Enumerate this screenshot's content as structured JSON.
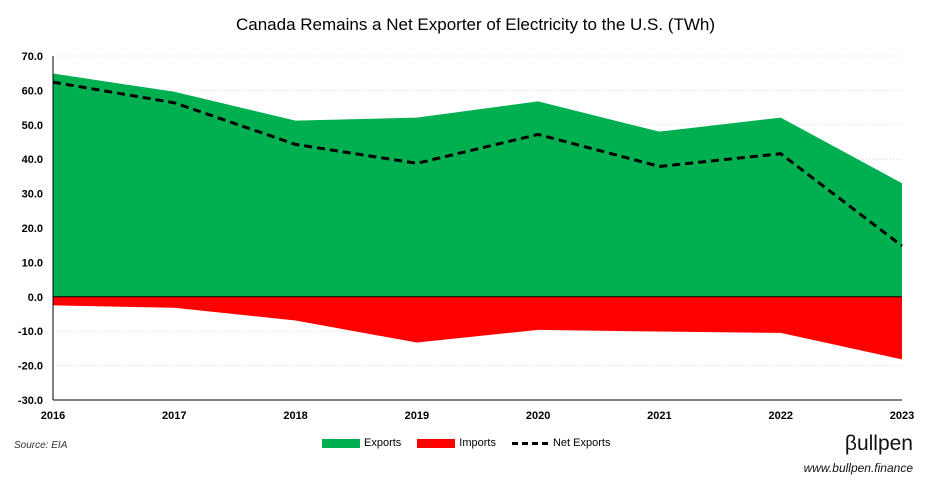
{
  "chart_data": {
    "type": "area",
    "title": "Canada Remains a Net Exporter of Electricity to the U.S. (TWh)",
    "x": [
      "2016",
      "2017",
      "2018",
      "2019",
      "2020",
      "2021",
      "2022",
      "2023"
    ],
    "series": [
      {
        "name": "Exports",
        "type": "area",
        "color": "#00b050",
        "values": [
          64.9,
          59.6,
          51.2,
          52.1,
          56.8,
          48.0,
          52.1,
          33.0
        ]
      },
      {
        "name": "Imports",
        "type": "area",
        "color": "#ff0000",
        "values": [
          -2.5,
          -3.2,
          -6.9,
          -13.3,
          -9.6,
          -10.1,
          -10.5,
          -18.2
        ]
      },
      {
        "name": "Net Exports",
        "type": "line",
        "style": "dashed",
        "color": "#000000",
        "values": [
          62.4,
          56.4,
          44.3,
          38.8,
          47.2,
          37.9,
          41.6,
          14.8
        ]
      }
    ],
    "ylim": [
      -30,
      70
    ],
    "yticks": [
      "70.0",
      "60.0",
      "50.0",
      "40.0",
      "30.0",
      "20.0",
      "10.0",
      "0.0",
      "-10.0",
      "-20.0",
      "-30.0"
    ],
    "xlabel": "",
    "ylabel": "",
    "grid": true,
    "legend_position": "bottom"
  },
  "source": "Source: EIA",
  "brand": {
    "logo_text": "βullpen",
    "url": "www.bullpen.finance"
  }
}
